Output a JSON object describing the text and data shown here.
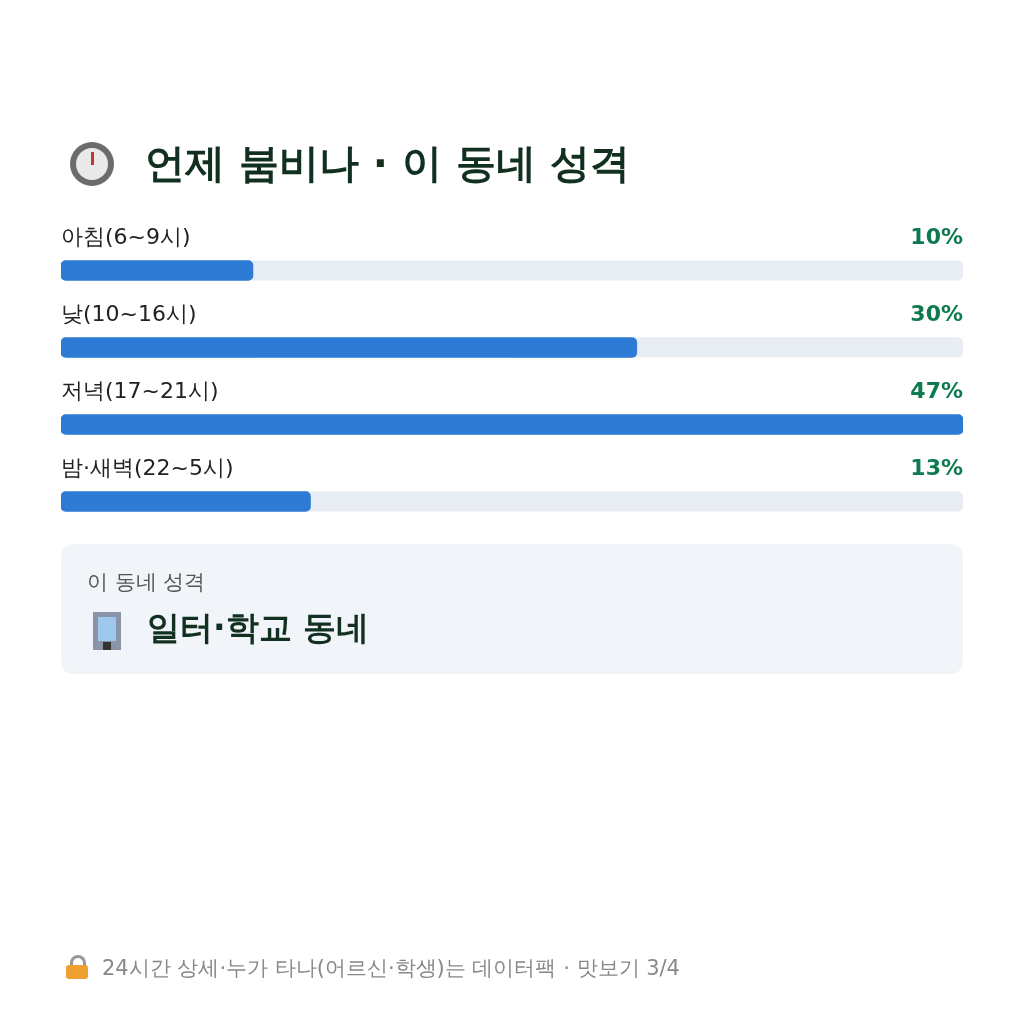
{
  "chart_data": {
    "type": "bar",
    "orientation": "horizontal",
    "title": "언제 붐비나 · 이 동네 성격",
    "categories": [
      "아침(6~9시)",
      "낮(10~16시)",
      "저녁(17~21시)",
      "밤·새벽(22~5시)"
    ],
    "values": [
      10,
      30,
      47,
      13
    ],
    "value_labels": [
      "10%",
      "30%",
      "47%",
      "13%"
    ],
    "color": "#2d7bd4",
    "annotations": [
      "이 동네 성격",
      "일터·학교 동네",
      "24시간 상세·누가 타나(어르신·학생)는 데이터팩 · 맛보기 3/4"
    ]
  }
}
